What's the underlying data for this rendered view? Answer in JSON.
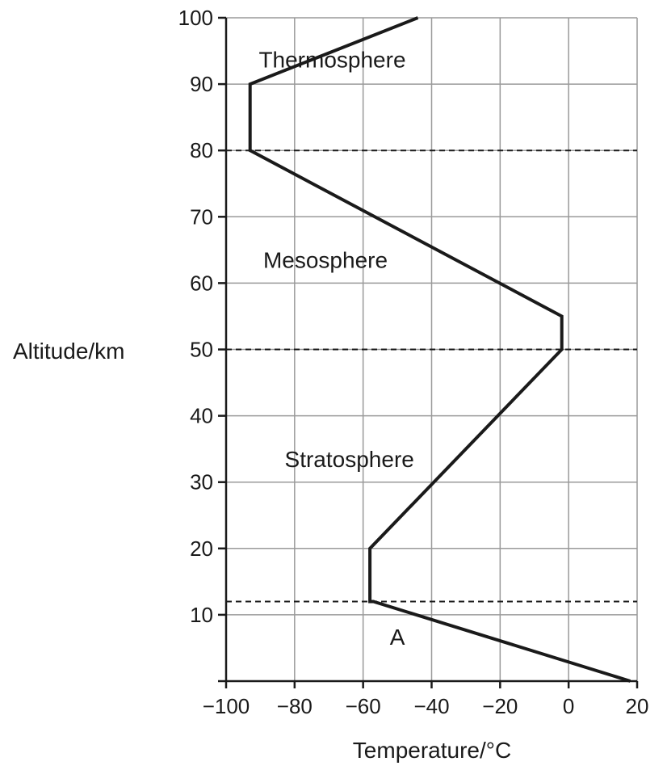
{
  "chart_data": {
    "type": "line",
    "xlabel": "Temperature/°C",
    "ylabel": "Altitude/km",
    "xlim": [
      -100,
      20
    ],
    "ylim": [
      0,
      100
    ],
    "x_ticks": [
      {
        "value": -100,
        "label": "−100"
      },
      {
        "value": -80,
        "label": "−80"
      },
      {
        "value": -60,
        "label": "−60"
      },
      {
        "value": -40,
        "label": "−40"
      },
      {
        "value": -20,
        "label": "−20"
      },
      {
        "value": 0,
        "label": "0"
      },
      {
        "value": 20,
        "label": "20"
      }
    ],
    "y_ticks": [
      {
        "value": 10,
        "label": "10"
      },
      {
        "value": 20,
        "label": "20"
      },
      {
        "value": 30,
        "label": "30"
      },
      {
        "value": 40,
        "label": "40"
      },
      {
        "value": 50,
        "label": "50"
      },
      {
        "value": 60,
        "label": "60"
      },
      {
        "value": 70,
        "label": "70"
      },
      {
        "value": 80,
        "label": "80"
      },
      {
        "value": 90,
        "label": "90"
      },
      {
        "value": 100,
        "label": "100"
      }
    ],
    "grid": true,
    "series": [
      {
        "points": [
          {
            "x": 18,
            "y": 0
          },
          {
            "x": -57,
            "y": 12
          },
          {
            "x": -58,
            "y": 12
          },
          {
            "x": -58,
            "y": 20
          },
          {
            "x": -2,
            "y": 50
          },
          {
            "x": -2,
            "y": 55
          },
          {
            "x": -93,
            "y": 80
          },
          {
            "x": -93,
            "y": 90
          },
          {
            "x": -44,
            "y": 100
          }
        ]
      }
    ],
    "boundaries": [
      12,
      50,
      80
    ],
    "annotations": [
      {
        "text": "Thermosphere",
        "x": -69,
        "y": 92.5
      },
      {
        "text": "Mesosphere",
        "x": -71,
        "y": 62.3
      },
      {
        "text": "Stratosphere",
        "x": -64,
        "y": 32.3
      },
      {
        "text": "A",
        "x": -50,
        "y": 5.5
      }
    ]
  }
}
